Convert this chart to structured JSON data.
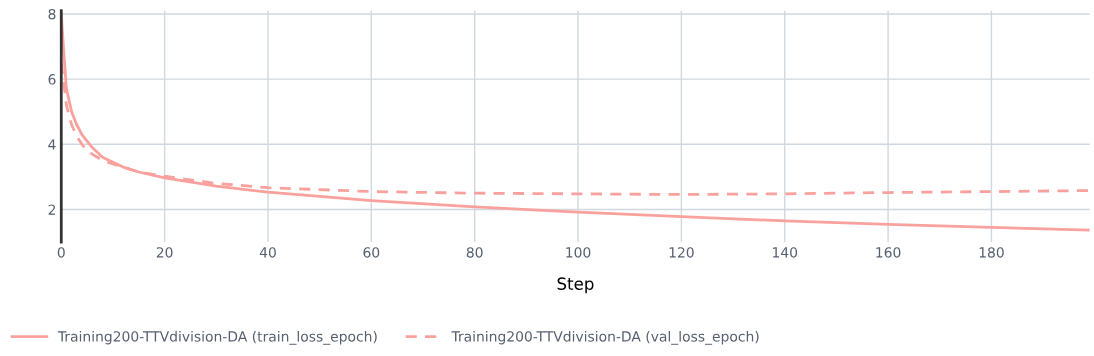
{
  "chart_data": {
    "type": "line",
    "xlabel": "Step",
    "xlim": [
      0,
      199
    ],
    "ylim": [
      1.0,
      8.1
    ],
    "xticks": [
      0,
      20,
      40,
      60,
      80,
      100,
      120,
      140,
      160,
      180
    ],
    "yticks": [
      2,
      4,
      6,
      8
    ],
    "grid": true,
    "legend": "bottom",
    "marker": "none",
    "series": [
      {
        "name": "Training200-TTVdivision-DA (train_loss_epoch)",
        "color": "#f9a19c",
        "line_style": "solid",
        "x": [
          0,
          0.5,
          1,
          2,
          3,
          4,
          5,
          6,
          8,
          10,
          12,
          15,
          20,
          30,
          40,
          60,
          80,
          100,
          120,
          140,
          160,
          180,
          199
        ],
        "values": [
          8.0,
          6.8,
          5.7,
          5.0,
          4.6,
          4.3,
          4.1,
          3.9,
          3.6,
          3.45,
          3.3,
          3.15,
          2.97,
          2.72,
          2.53,
          2.27,
          2.08,
          1.92,
          1.78,
          1.65,
          1.54,
          1.45,
          1.37
        ]
      },
      {
        "name": "Training200-TTVdivision-DA (val_loss_epoch)",
        "color": "#f9a19c",
        "line_style": "dashed",
        "x": [
          0,
          1,
          2,
          3,
          4,
          5,
          6,
          8,
          10,
          15,
          20,
          30,
          40,
          60,
          80,
          100,
          120,
          140,
          160,
          180,
          199
        ],
        "values": [
          6.5,
          5.2,
          4.6,
          4.25,
          4.0,
          3.8,
          3.7,
          3.5,
          3.4,
          3.15,
          3.02,
          2.8,
          2.67,
          2.55,
          2.5,
          2.48,
          2.46,
          2.48,
          2.52,
          2.55,
          2.58
        ]
      }
    ]
  }
}
